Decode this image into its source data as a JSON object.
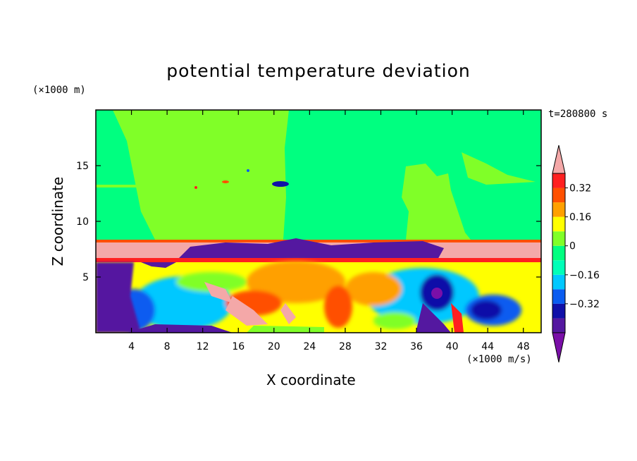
{
  "chart_data": {
    "type": "heatmap",
    "title": "potential temperature deviation",
    "xlabel": "X coordinate",
    "ylabel": "Z coordinate",
    "x_unit": "(×1000 m/s)",
    "y_unit": "(×1000 m)",
    "time_label": "t=280800 s",
    "xlim": [
      0,
      50
    ],
    "ylim": [
      0,
      20
    ],
    "x_ticks": [
      4,
      8,
      12,
      16,
      20,
      24,
      28,
      32,
      36,
      40,
      44,
      48
    ],
    "y_ticks": [
      5,
      10,
      15
    ],
    "colorbar": {
      "levels": [
        -0.48,
        -0.4,
        -0.32,
        -0.24,
        -0.16,
        -0.08,
        0,
        0.08,
        0.16,
        0.24,
        0.32,
        0.4
      ],
      "tick_labels": [
        "0.32",
        "0.16",
        "0",
        "−0.16",
        "−0.32"
      ],
      "tick_values": [
        0.32,
        0.16,
        0,
        -0.16,
        -0.32
      ],
      "colors": [
        "#7a0fa8",
        "#5418a0",
        "#1010a8",
        "#0a5cf0",
        "#00c8ff",
        "#00ffb8",
        "#00ff80",
        "#80ff28",
        "#ffff00",
        "#ffa000",
        "#ff5000",
        "#ff2020",
        "#f4a8a8"
      ],
      "extend": "both"
    }
  }
}
